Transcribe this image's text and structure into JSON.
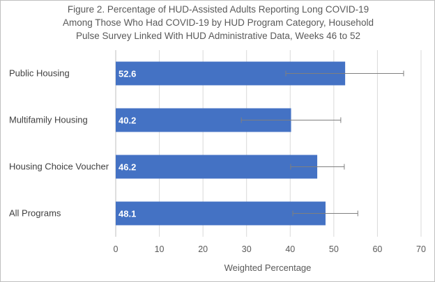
{
  "chart_data": {
    "type": "bar",
    "orientation": "horizontal",
    "title_lines": [
      "Figure 2. Percentage of HUD-Assisted Adults Reporting Long COVID-19",
      "Among Those Who Had COVID-19 by HUD Program Category, Household",
      "Pulse Survey Linked With HUD Administrative Data, Weeks 46 to 52"
    ],
    "categories": [
      "Public Housing",
      "Multifamily Housing",
      "Housing Choice Voucher",
      "All Programs"
    ],
    "values": [
      52.6,
      40.2,
      46.2,
      48.1
    ],
    "value_labels": [
      "52.6",
      "40.2",
      "46.2",
      "48.1"
    ],
    "error_low": [
      39.0,
      28.8,
      40.1,
      40.6
    ],
    "error_high": [
      66.0,
      51.6,
      52.4,
      55.5
    ],
    "xlabel": "Weighted Percentage",
    "ylabel": "",
    "xlim": [
      0,
      70
    ],
    "xticks": [
      0,
      10,
      20,
      30,
      40,
      50,
      60,
      70
    ],
    "xtick_labels": [
      "0",
      "10",
      "20",
      "30",
      "40",
      "50",
      "60",
      "70"
    ],
    "grid": "vertical",
    "legend": "none",
    "colors": {
      "bar": "#4472c4",
      "error_bar": "#7f7f7f",
      "grid": "#d9d9d9",
      "data_label": "#ffffff"
    }
  }
}
